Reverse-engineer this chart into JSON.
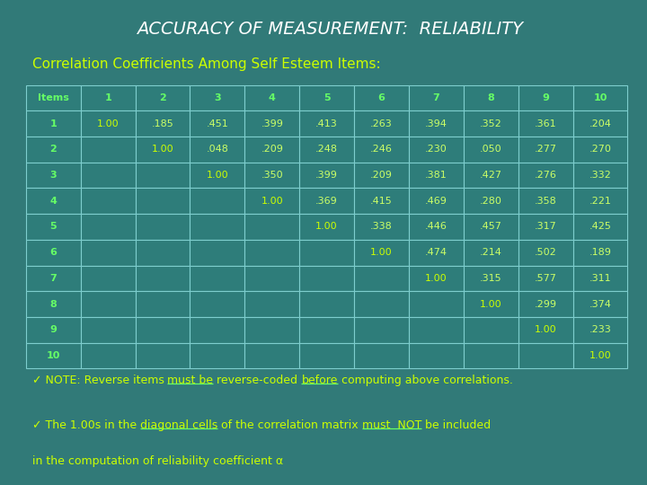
{
  "title": "ACCURACY OF MEASUREMENT:  RELIABILITY",
  "subtitle": "Correlation Coefficients Among Self Esteem Items:",
  "bg_color": "#317a78",
  "title_color": "#ffffff",
  "subtitle_color": "#ccff00",
  "table_cell_bg": "#2e7d7a",
  "table_border_color": "#7ecece",
  "header_text_color": "#66ff66",
  "row_label_color": "#66ff66",
  "diagonal_color": "#ccff00",
  "off_diagonal_color": "#ccff66",
  "columns": [
    "Items",
    "1",
    "2",
    "3",
    "4",
    "5",
    "6",
    "7",
    "8",
    "9",
    "10"
  ],
  "rows": [
    "1",
    "2",
    "3",
    "4",
    "5",
    "6",
    "7",
    "8",
    "9",
    "10"
  ],
  "data": [
    [
      "1.00",
      ".185",
      ".451",
      ".399",
      ".413",
      ".263",
      ".394",
      ".352",
      ".361",
      ".204"
    ],
    [
      "",
      "1.00",
      ".048",
      ".209",
      ".248",
      ".246",
      ".230",
      ".050",
      ".277",
      ".270"
    ],
    [
      "",
      "",
      "1.00",
      ".350",
      ".399",
      ".209",
      ".381",
      ".427",
      ".276",
      ".332"
    ],
    [
      "",
      "",
      "",
      "1.00",
      ".369",
      ".415",
      ".469",
      ".280",
      ".358",
      ".221"
    ],
    [
      "",
      "",
      "",
      "",
      "1.00",
      ".338",
      ".446",
      ".457",
      ".317",
      ".425"
    ],
    [
      "",
      "",
      "",
      "",
      "",
      "1.00",
      ".474",
      ".214",
      ".502",
      ".189"
    ],
    [
      "",
      "",
      "",
      "",
      "",
      "",
      "1.00",
      ".315",
      ".577",
      ".311"
    ],
    [
      "",
      "",
      "",
      "",
      "",
      "",
      "",
      "1.00",
      ".299",
      ".374"
    ],
    [
      "",
      "",
      "",
      "",
      "",
      "",
      "",
      "",
      "1.00",
      ".233"
    ],
    [
      "",
      "",
      "",
      "",
      "",
      "",
      "",
      "",
      "",
      "1.00"
    ]
  ],
  "note_color": "#ccff00",
  "note_underline_color": "#66ff66",
  "note1_segments": [
    [
      "✓ NOTE: Reverse items ",
      false
    ],
    [
      "must be",
      true
    ],
    [
      " reverse-coded ",
      false
    ],
    [
      "before",
      true
    ],
    [
      " computing above correlations.",
      false
    ]
  ],
  "note2_segments": [
    [
      "✓ The 1.00s in the ",
      false
    ],
    [
      "diagonal cells",
      true
    ],
    [
      " of the correlation matrix ",
      false
    ],
    [
      "must  NOT",
      true
    ],
    [
      " be included",
      false
    ]
  ],
  "note3": "in the computation of reliability coefficient α"
}
